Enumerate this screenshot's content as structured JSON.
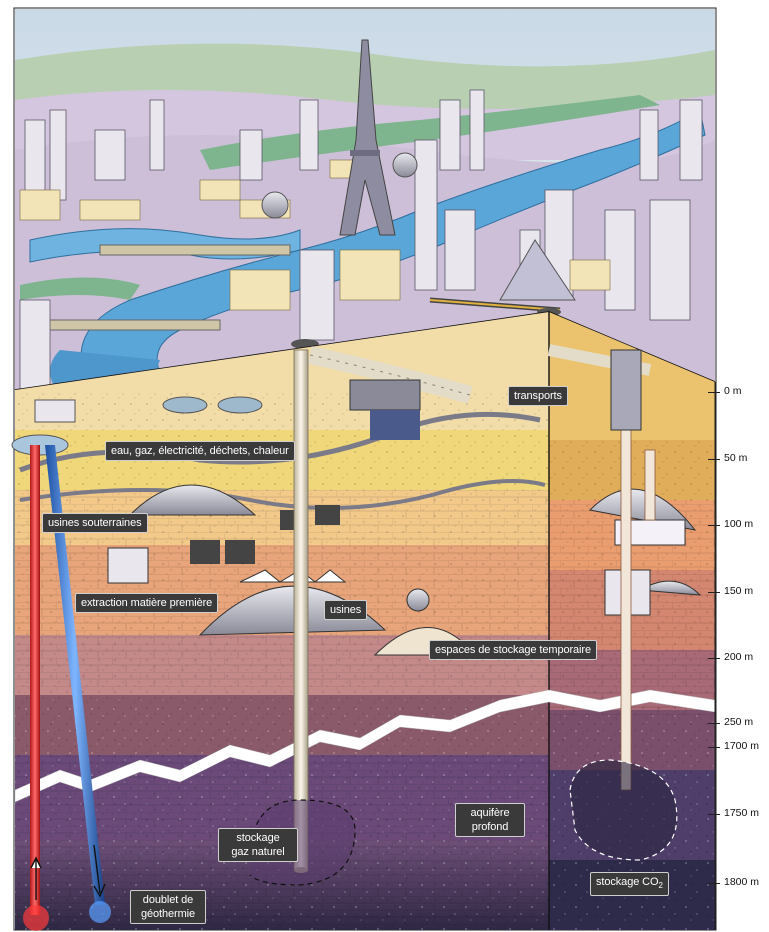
{
  "labels": {
    "transports": "transports",
    "utilities": "eau, gaz, électricité, déchets, chaleur",
    "underground_factories": "usines souterraines",
    "raw_extraction": "extraction matière première",
    "factories": "usines",
    "temp_storage": "espaces de stockage temporaire",
    "gas_storage_line1": "stockage",
    "gas_storage_line2": "gaz naturel",
    "aquifer_line1": "aquifère",
    "aquifer_line2": "profond",
    "geothermal_line1": "doublet de",
    "geothermal_line2": "géothermie",
    "co2_storage": "stockage CO",
    "co2_subscript": "2"
  },
  "depth_scale": [
    "0 m",
    "50 m",
    "100 m",
    "150 m",
    "200 m",
    "250 m",
    "1700 m",
    "1750 m",
    "1800 m"
  ],
  "colors": {
    "sky": "#dfe8f0",
    "river": "#5aa6d8",
    "sand": "#f2dca8",
    "ochre": "#e8b95a",
    "terracotta": "#e8a47a",
    "rose": "#c48a8a",
    "maroon": "#8a5a6a",
    "purple": "#6b4a7a",
    "deep": "#3e3050"
  }
}
